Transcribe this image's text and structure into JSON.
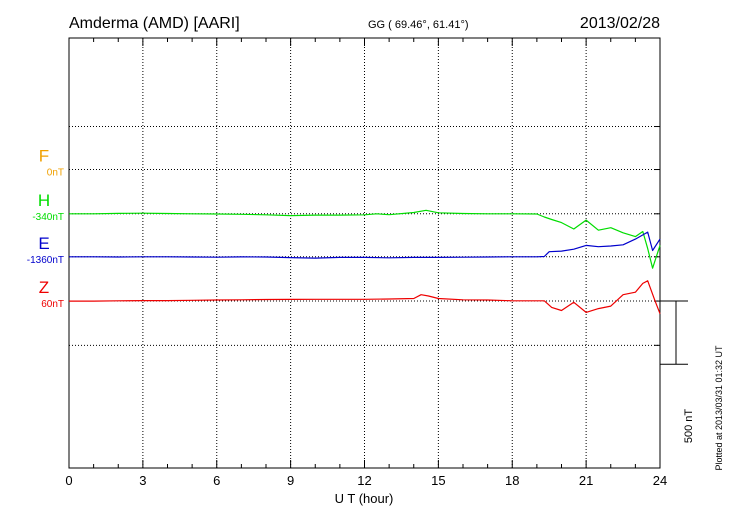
{
  "chart_data": {
    "type": "line",
    "title": "Amderma (AMD)  [AARI]",
    "coords": "GG ( 69.46°,  61.41°)",
    "date": "2013/02/28",
    "xlabel": "U T (hour)",
    "xlim": [
      0,
      24
    ],
    "x_ticks": [
      0,
      3,
      6,
      9,
      12,
      15,
      18,
      21,
      24
    ],
    "x_tick_labels": [
      "0",
      "3",
      "6",
      "9",
      "12",
      "15",
      "18",
      "21",
      "24"
    ],
    "ylim_nT": [
      -1700,
      1700
    ],
    "gridlines_nT": [
      1000,
      660,
      310,
      -30,
      -380,
      -730
    ],
    "scale_bar_label": "500 nT",
    "scale_bar_nT": 500,
    "plotted_note": "Plotted at 2013/03/31 01:32 UT",
    "series": [
      {
        "name": "F",
        "offset_label": "0nT",
        "baseline_nT": 660,
        "color": "#f0a000",
        "x": [],
        "values": []
      },
      {
        "name": "H",
        "offset_label": "-340nT",
        "baseline_nT": 310,
        "color": "#00dd00",
        "x": [
          0,
          1,
          2,
          3,
          4,
          5,
          6,
          7,
          8,
          9,
          10,
          11,
          12,
          12.5,
          13,
          14,
          14.5,
          15,
          16,
          17,
          18,
          19,
          19.3,
          19.6,
          20,
          20.5,
          21,
          21.5,
          22,
          22.5,
          23,
          23.3,
          23.5,
          23.7,
          24
        ],
        "values": [
          310,
          310,
          313,
          315,
          312,
          310,
          308,
          306,
          302,
          296,
          300,
          300,
          302,
          310,
          303,
          320,
          338,
          318,
          312,
          310,
          310,
          308,
          285,
          265,
          240,
          190,
          260,
          180,
          200,
          160,
          130,
          170,
          35,
          -120,
          60
        ]
      },
      {
        "name": "E",
        "offset_label": "-1360nT",
        "baseline_nT": -30,
        "color": "#0000cc",
        "x": [
          0,
          1,
          2,
          3,
          4,
          5,
          6,
          7,
          8,
          9,
          10,
          11,
          12,
          13,
          14,
          15,
          16,
          17,
          18,
          19,
          19.3,
          19.5,
          20,
          20.5,
          21,
          21.5,
          22,
          22.5,
          23,
          23.5,
          23.7,
          24
        ],
        "values": [
          -30,
          -30,
          -32,
          -30,
          -30,
          -32,
          -33,
          -31,
          -32,
          -36,
          -40,
          -35,
          -35,
          -38,
          -35,
          -35,
          -33,
          -32,
          -30,
          -30,
          -28,
          10,
          15,
          30,
          60,
          50,
          55,
          65,
          110,
          165,
          20,
          110
        ]
      },
      {
        "name": "Z",
        "offset_label": "60nT",
        "baseline_nT": -380,
        "color": "#ee0000",
        "x": [
          0,
          1,
          2,
          3,
          4,
          5,
          6,
          7,
          8,
          9,
          10,
          11,
          12,
          13,
          14,
          14.3,
          14.6,
          15,
          16,
          17,
          18,
          19,
          19.3,
          19.6,
          20,
          20.5,
          21,
          21.5,
          22,
          22.5,
          23,
          23.3,
          23.5,
          23.8,
          24
        ],
        "values": [
          -380,
          -380,
          -378,
          -376,
          -376,
          -374,
          -372,
          -370,
          -368,
          -367,
          -366,
          -366,
          -366,
          -364,
          -360,
          -330,
          -340,
          -360,
          -370,
          -372,
          -378,
          -378,
          -378,
          -430,
          -455,
          -390,
          -470,
          -440,
          -420,
          -330,
          -310,
          -240,
          -220,
          -380,
          -480
        ]
      }
    ]
  }
}
